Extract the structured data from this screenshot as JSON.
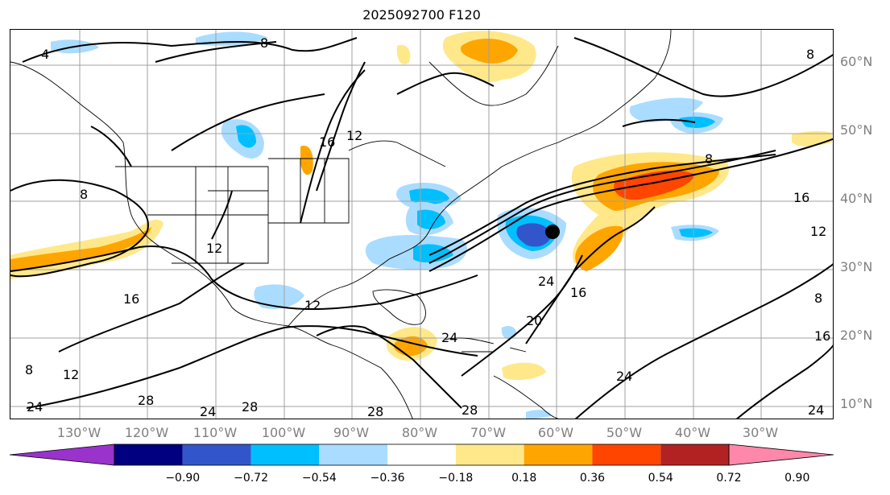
{
  "title": "2025092700 F120",
  "latitude_labels": [
    "60°N",
    "50°N",
    "40°N",
    "30°N",
    "20°N",
    "10°N"
  ],
  "longitude_labels": [
    "130°W",
    "120°W",
    "110°W",
    "100°W",
    "90°W",
    "80°W",
    "70°W",
    "60°W",
    "50°W",
    "40°W",
    "30°W"
  ],
  "contour_labels": [
    "4",
    "8",
    "12",
    "16",
    "20",
    "24",
    "28"
  ],
  "colorbar": {
    "ticks": [
      "−0.90",
      "−0.72",
      "−0.54",
      "−0.36",
      "−0.18",
      "0.18",
      "0.36",
      "0.54",
      "0.72",
      "0.90"
    ],
    "colors": [
      "#9933cc",
      "#000080",
      "#3355cc",
      "#00bfff",
      "#aadcff",
      "#ffffff",
      "#ffe88a",
      "#ffa500",
      "#ff4500",
      "#b22222",
      "#ff88aa"
    ]
  },
  "marker": {
    "description_color": "#000000"
  }
}
